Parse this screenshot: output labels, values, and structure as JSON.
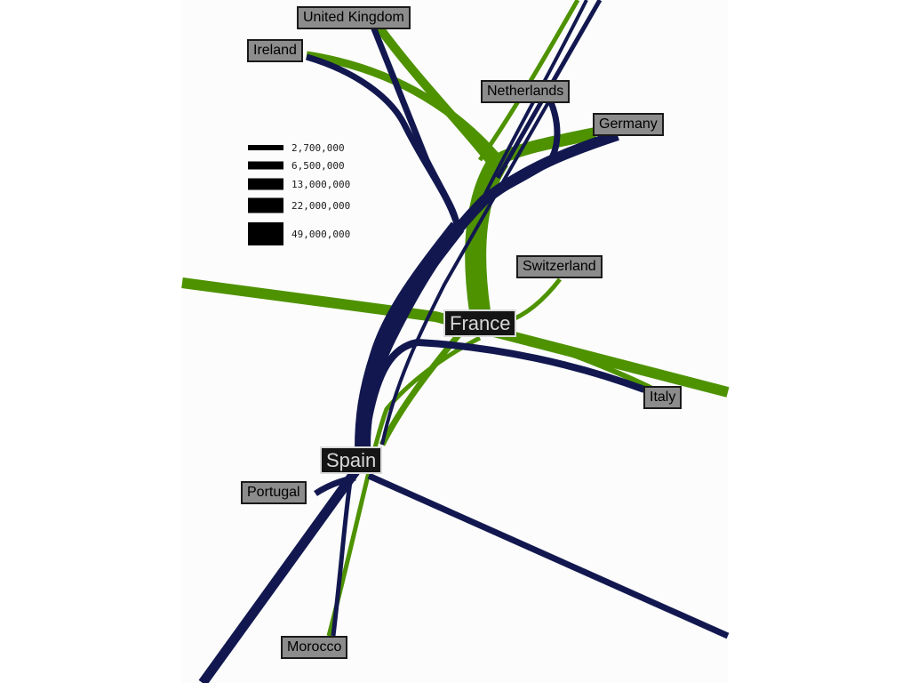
{
  "colors": {
    "navy": "#12184f",
    "green": "#4e9200",
    "label_bg": "#8c8c8c",
    "hub_bg": "#151515",
    "hub_text": "#d8d8d8"
  },
  "hubs": {
    "france": "France",
    "spain": "Spain"
  },
  "places": {
    "united_kingdom": "United Kingdom",
    "ireland": "Ireland",
    "netherlands": "Netherlands",
    "germany": "Germany",
    "switzerland": "Switzerland",
    "italy": "Italy",
    "portugal": "Portugal",
    "morocco": "Morocco"
  },
  "legend": {
    "items": [
      {
        "label": "2,700,000",
        "value": 2700000
      },
      {
        "label": "6,500,000",
        "value": 6500000
      },
      {
        "label": "13,000,000",
        "value": 13000000
      },
      {
        "label": "22,000,000",
        "value": 22000000
      },
      {
        "label": "49,000,000",
        "value": 49000000
      }
    ]
  }
}
